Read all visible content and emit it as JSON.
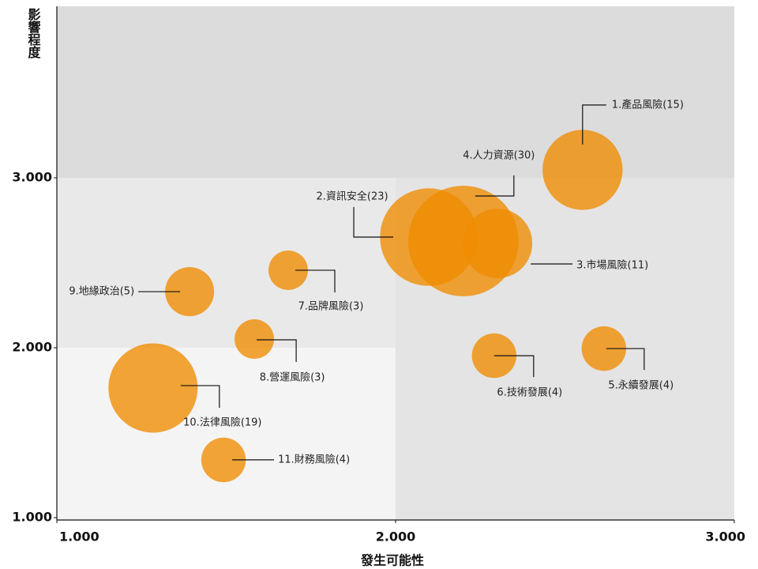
{
  "chart_data": {
    "type": "bubble",
    "x_label": "發生可能性",
    "y_label": "影響程度",
    "xlim": [
      1,
      3
    ],
    "xticks": [
      {
        "value": 1,
        "label": "1.000"
      },
      {
        "value": 2,
        "label": "2.000"
      },
      {
        "value": 3,
        "label": "3.000"
      }
    ],
    "ylim": [
      1,
      4
    ],
    "yticks": [
      {
        "value": 1,
        "label": "1.000"
      },
      {
        "value": 2,
        "label": "2.000"
      },
      {
        "value": 3,
        "label": "3.000"
      }
    ],
    "color": "#ef8c00",
    "points": [
      {
        "label": "1.產品風險(15)",
        "x": 2.552,
        "y": 3.047,
        "size": 15
      },
      {
        "label": "2.資訊安全(23)",
        "x": 2.098,
        "y": 2.651,
        "size": 23
      },
      {
        "label": "3.市場風險(11)",
        "x": 2.301,
        "y": 2.614,
        "size": 11
      },
      {
        "label": "4.人力資源(30)",
        "x": 2.2,
        "y": 2.628,
        "size": 30
      },
      {
        "label": "5.永續發展(4)",
        "x": 2.615,
        "y": 1.995,
        "size": 4
      },
      {
        "label": "6.技術發展(4)",
        "x": 2.291,
        "y": 1.953,
        "size": 4
      },
      {
        "label": "7.品牌風險(3)",
        "x": 1.683,
        "y": 2.456,
        "size": 3
      },
      {
        "label": "8.營運風險(3)",
        "x": 1.583,
        "y": 2.051,
        "size": 3
      },
      {
        "label": "9.地緣政治(5)",
        "x": 1.392,
        "y": 2.33,
        "size": 5
      },
      {
        "label": "10.法律風險(19)",
        "x": 1.284,
        "y": 1.763,
        "size": 19
      },
      {
        "label": "11.財務風險(4)",
        "x": 1.492,
        "y": 1.34,
        "size": 4
      }
    ]
  }
}
